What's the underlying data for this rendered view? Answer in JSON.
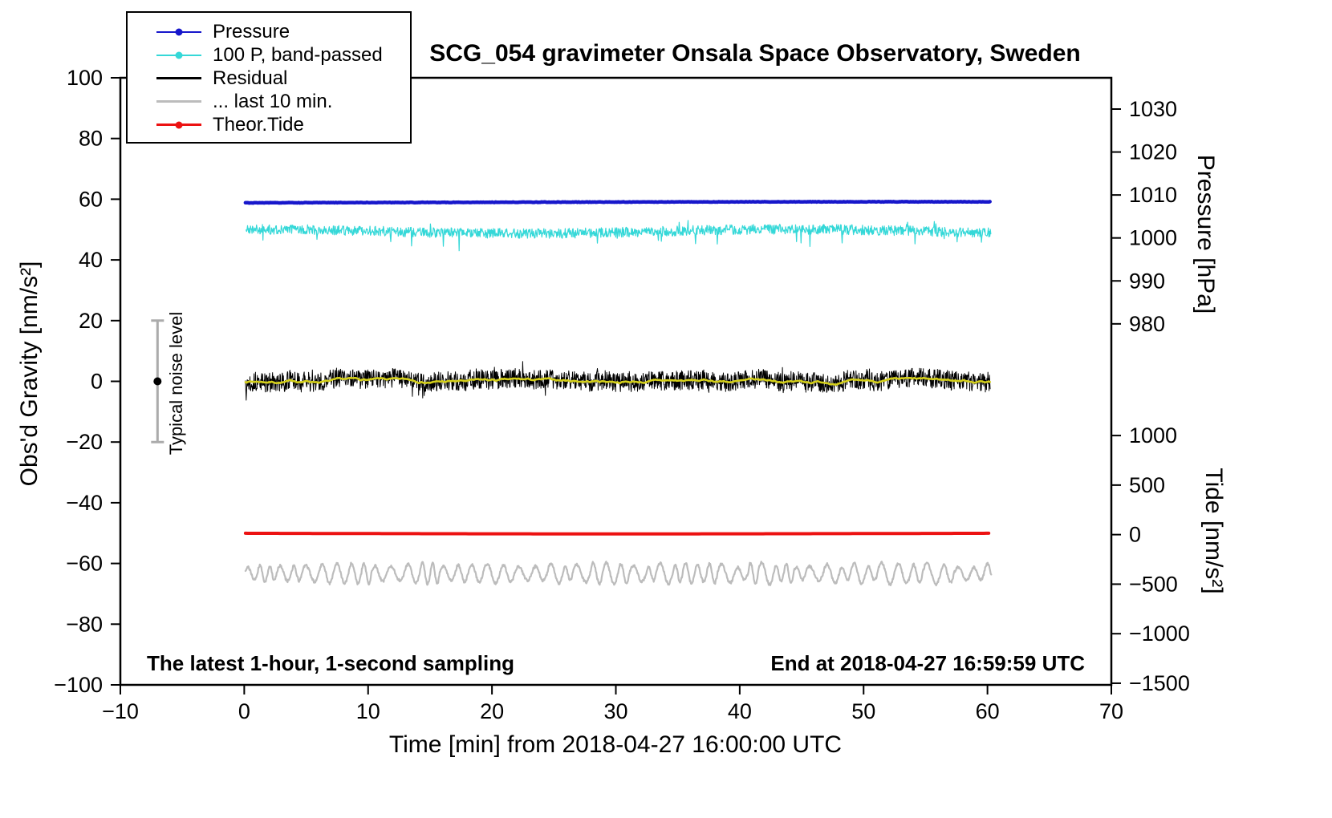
{
  "chart_data": {
    "type": "line",
    "title": "SCG_054 gravimeter Onsala Space Observatory, Sweden",
    "xlabel": "Time [min] from 2018-04-27 16:00:00 UTC",
    "ylabel_left": "Obs'd Gravity [nm/s²]",
    "ylabel_pressure": "Pressure [hPa]",
    "ylabel_tide": "Tide [nm/s²]",
    "xlim": [
      -10,
      70
    ],
    "ylim_left": [
      -100,
      100
    ],
    "x_ticks": [
      -10,
      0,
      10,
      20,
      30,
      40,
      50,
      60,
      70
    ],
    "y_ticks_left": [
      100,
      80,
      60,
      40,
      20,
      0,
      -20,
      -40,
      -60,
      -80,
      -100
    ],
    "pressure_ticks": [
      1030,
      1020,
      1010,
      1000,
      990,
      980
    ],
    "tide_ticks": [
      1000,
      500,
      0,
      -500,
      -1000,
      -1500
    ],
    "legend": [
      {
        "label": "Pressure",
        "color": "#1717cb",
        "dot": true,
        "lw": 2.5
      },
      {
        "label": "100 P, band-passed",
        "color": "#35d8d8",
        "dot": true,
        "lw": 2
      },
      {
        "label": "Residual",
        "color": "#000000",
        "dot": false,
        "lw": 3.5
      },
      {
        "label": "... last 10 min.",
        "color": "#bcbcbc",
        "dot": false,
        "lw": 3.5
      },
      {
        "label": "Theor.Tide",
        "color": "#ec1212",
        "dot": true,
        "lw": 3
      }
    ],
    "series": [
      {
        "name": "Pressure",
        "color": "#1717cb",
        "axis": "left+pressure",
        "approx_level": 59,
        "approx_pressure_hPa": 1008,
        "noise_amplitude": 0.15,
        "x_range_min": [
          0,
          60.3
        ],
        "character": "smooth, nearly constant thick line"
      },
      {
        "name": "100 P, band-passed",
        "color": "#35d8d8",
        "axis": "left",
        "approx_level": 49.5,
        "noise_amplitude": 3,
        "x_range_min": [
          0,
          60.3
        ],
        "character": "high-frequency band-passed noise with occasional downward spikes"
      },
      {
        "name": "Residual",
        "color": "#000000",
        "axis": "left",
        "approx_level": 0,
        "noise_amplitude": 5,
        "x_range_min": [
          0,
          60.3
        ],
        "character": "dense high-frequency noise band around zero"
      },
      {
        "name": "Residual smoothed",
        "color": "#d4cf1a",
        "axis": "left",
        "approx_level": 0,
        "noise_amplitude": 1,
        "x_range_min": [
          0,
          60.3
        ],
        "character": "slow yellow wiggle overlaid on residual"
      },
      {
        "name": "... last 10 min.",
        "color": "#bcbcbc",
        "axis": "left",
        "approx_level": -63,
        "noise_amplitude": 2.5,
        "x_range_min": [
          0,
          60.3
        ],
        "character": "quasi-periodic oscillation"
      },
      {
        "name": "Theor.Tide",
        "color": "#ec1212",
        "axis": "left+tide",
        "approx_level": -50,
        "approx_tide_value": 0,
        "noise_amplitude": 0.1,
        "x_range_min": [
          0,
          60.3
        ],
        "character": "smooth, nearly constant thick line"
      }
    ],
    "noise_bar": {
      "x": -7,
      "y_center": 0,
      "half_range": 20,
      "label": "Typical noise level"
    },
    "annotations": {
      "left": "The latest 1-hour, 1-second sampling",
      "right": "End at 2018-04-27 16:59:59 UTC"
    }
  }
}
